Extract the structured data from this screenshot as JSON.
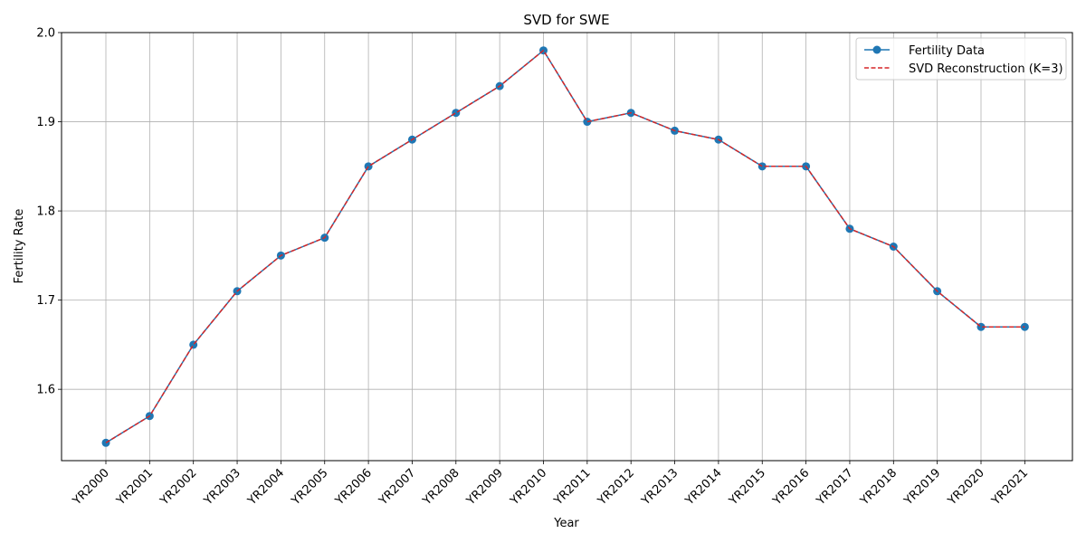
{
  "chart_data": {
    "type": "line",
    "title": "SVD for SWE",
    "xlabel": "Year",
    "ylabel": "Fertility Rate",
    "categories": [
      "YR2000",
      "YR2001",
      "YR2002",
      "YR2003",
      "YR2004",
      "YR2005",
      "YR2006",
      "YR2007",
      "YR2008",
      "YR2009",
      "YR2010",
      "YR2011",
      "YR2012",
      "YR2013",
      "YR2014",
      "YR2015",
      "YR2016",
      "YR2017",
      "YR2018",
      "YR2019",
      "YR2020",
      "YR2021"
    ],
    "ylim": [
      1.52,
      2.0
    ],
    "yticks": [
      "1.6",
      "1.7",
      "1.8",
      "1.9",
      "2.0"
    ],
    "grid": true,
    "legend_position": "top-right",
    "series": [
      {
        "name": "Fertility Data",
        "color": "#1f77b4",
        "style": "solid-with-markers",
        "values": [
          1.54,
          1.57,
          1.65,
          1.71,
          1.75,
          1.77,
          1.85,
          1.88,
          1.91,
          1.94,
          1.98,
          1.9,
          1.91,
          1.89,
          1.88,
          1.85,
          1.85,
          1.78,
          1.76,
          1.71,
          1.67,
          1.67
        ]
      },
      {
        "name": "SVD Reconstruction (K=3)",
        "color": "#d62728",
        "style": "dashed",
        "values": [
          1.54,
          1.57,
          1.65,
          1.71,
          1.75,
          1.77,
          1.85,
          1.88,
          1.91,
          1.94,
          1.98,
          1.9,
          1.91,
          1.89,
          1.88,
          1.85,
          1.85,
          1.78,
          1.76,
          1.71,
          1.67,
          1.67
        ]
      }
    ]
  }
}
